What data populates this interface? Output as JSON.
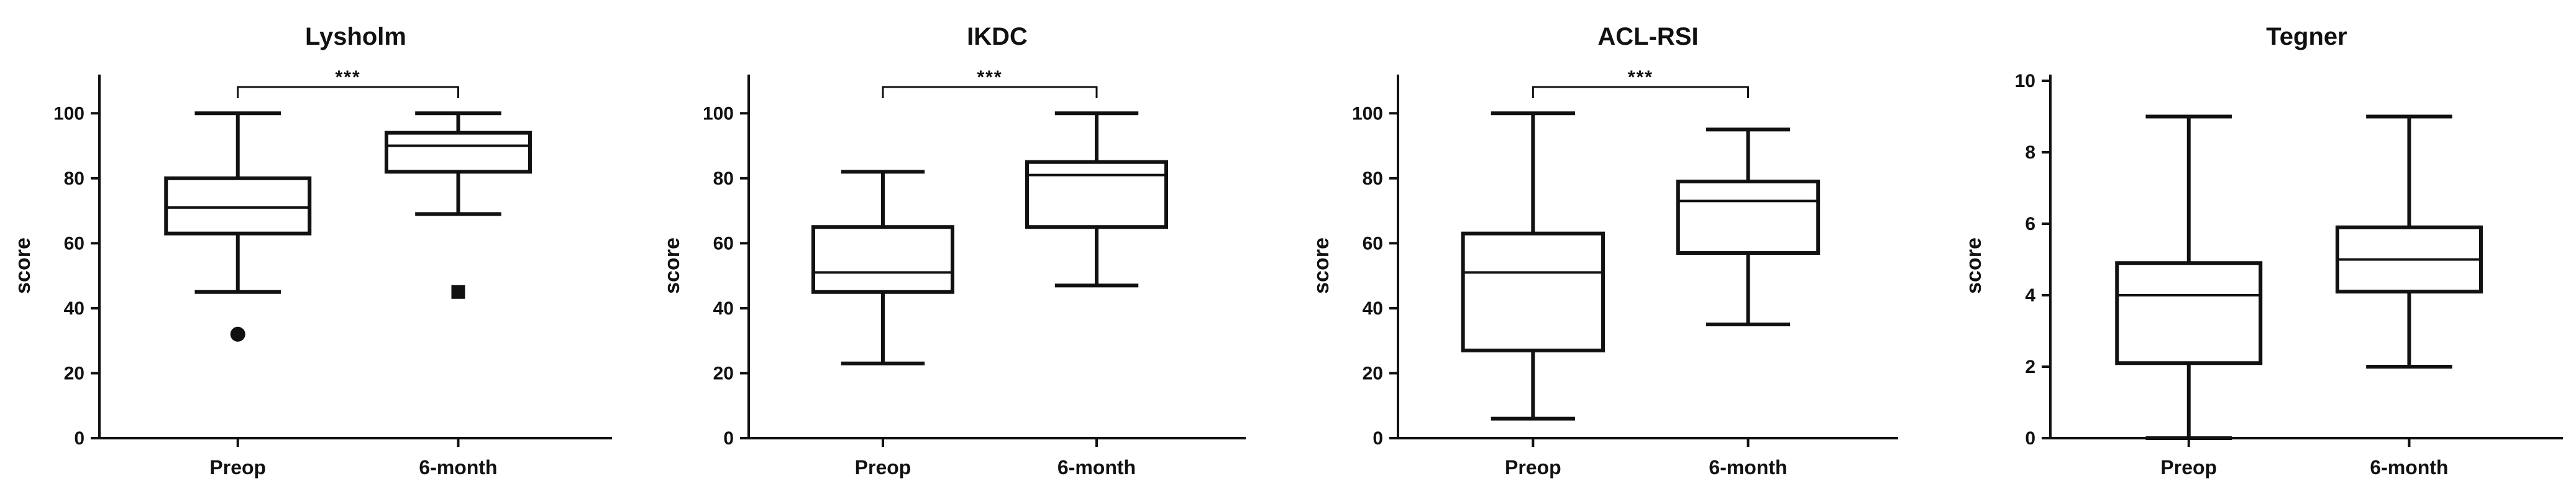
{
  "chart_data": [
    {
      "type": "box",
      "title": "Lysholm",
      "ylabel": "score",
      "categories": [
        "Preop",
        "6-month"
      ],
      "ylim": [
        0,
        110
      ],
      "yticks": [
        0,
        20,
        40,
        60,
        80,
        100
      ],
      "boxes": [
        {
          "category": "Preop",
          "min": 45,
          "q1": 63,
          "median": 71,
          "q3": 80,
          "max": 100,
          "outliers": [
            {
              "value": 32,
              "shape": "circle"
            }
          ]
        },
        {
          "category": "6-month",
          "min": 69,
          "q1": 82,
          "median": 90,
          "q3": 94,
          "max": 100,
          "outliers": [
            {
              "value": 45,
              "shape": "square"
            }
          ]
        }
      ],
      "significance": {
        "pair": [
          "Preop",
          "6-month"
        ],
        "label": "***"
      }
    },
    {
      "type": "box",
      "title": "IKDC",
      "ylabel": "score",
      "categories": [
        "Preop",
        "6-month"
      ],
      "ylim": [
        0,
        110
      ],
      "yticks": [
        0,
        20,
        40,
        60,
        80,
        100
      ],
      "boxes": [
        {
          "category": "Preop",
          "min": 23,
          "q1": 45,
          "median": 51,
          "q3": 65,
          "max": 82,
          "outliers": []
        },
        {
          "category": "6-month",
          "min": 47,
          "q1": 65,
          "median": 81,
          "q3": 85,
          "max": 100,
          "outliers": []
        }
      ],
      "significance": {
        "pair": [
          "Preop",
          "6-month"
        ],
        "label": "***"
      }
    },
    {
      "type": "box",
      "title": "ACL-RSI",
      "ylabel": "score",
      "categories": [
        "Preop",
        "6-month"
      ],
      "ylim": [
        0,
        110
      ],
      "yticks": [
        0,
        20,
        40,
        60,
        80,
        100
      ],
      "boxes": [
        {
          "category": "Preop",
          "min": 6,
          "q1": 27,
          "median": 51,
          "q3": 63,
          "max": 100,
          "outliers": []
        },
        {
          "category": "6-month",
          "min": 35,
          "q1": 57,
          "median": 73,
          "q3": 79,
          "max": 95,
          "outliers": []
        }
      ],
      "significance": {
        "pair": [
          "Preop",
          "6-month"
        ],
        "label": "***"
      }
    },
    {
      "type": "box",
      "title": "Tegner",
      "ylabel": "score",
      "categories": [
        "Preop",
        "6-month"
      ],
      "ylim": [
        0,
        10
      ],
      "yticks": [
        0,
        2,
        4,
        6,
        8,
        10
      ],
      "boxes": [
        {
          "category": "Preop",
          "min": 0,
          "q1": 2.1,
          "median": 4,
          "q3": 4.9,
          "max": 9,
          "outliers": []
        },
        {
          "category": "6-month",
          "min": 2,
          "q1": 4.1,
          "median": 5,
          "q3": 5.9,
          "max": 9,
          "outliers": []
        }
      ],
      "significance": null
    }
  ]
}
